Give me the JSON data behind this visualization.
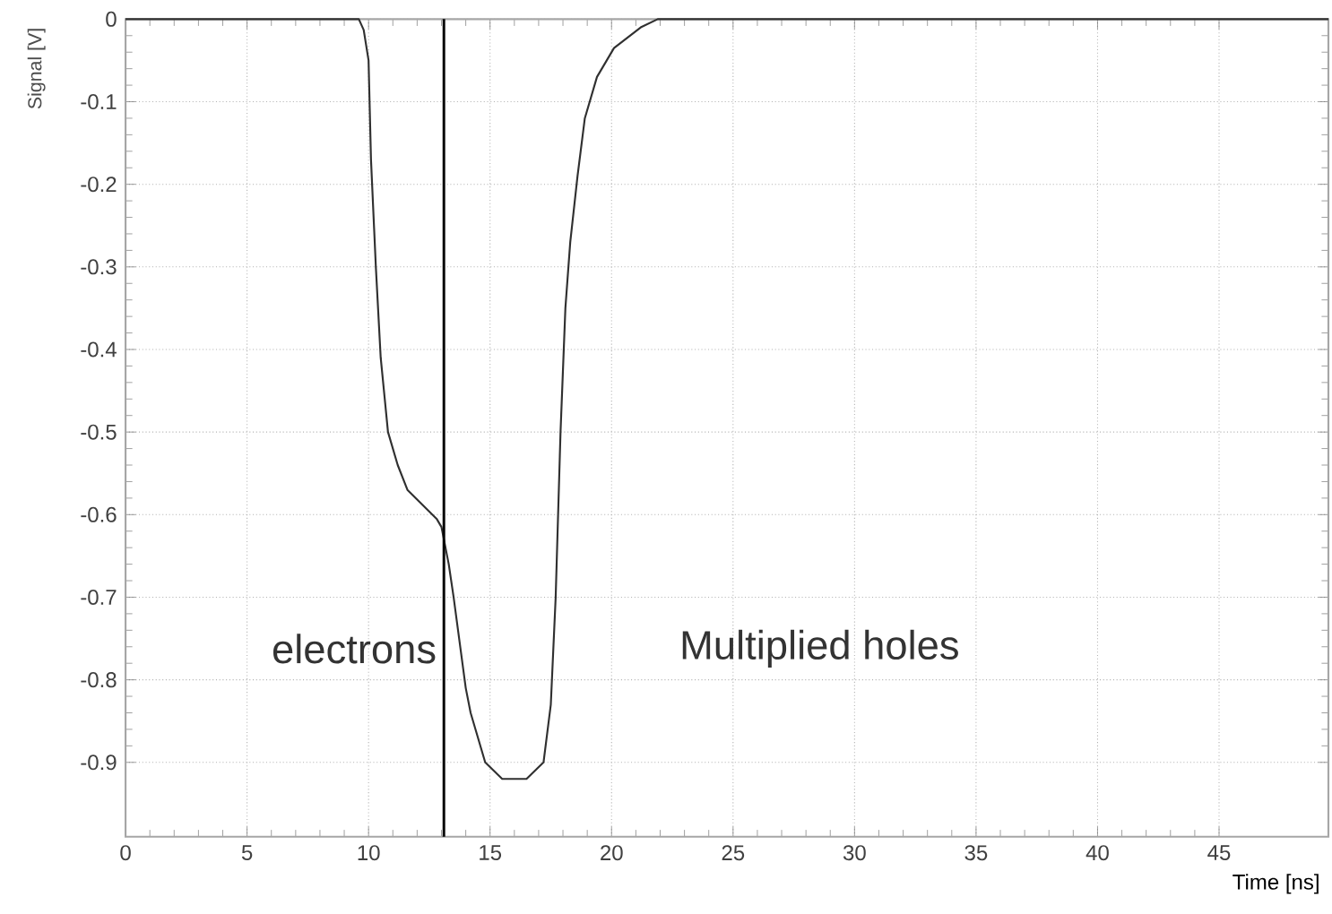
{
  "chart_data": {
    "type": "line",
    "xlabel": "Time [ns]",
    "ylabel": "Signal [V]",
    "x": [
      0,
      9.6,
      9.8,
      10.0,
      10.1,
      10.3,
      10.5,
      10.8,
      11.2,
      11.6,
      12.8,
      13.0,
      13.3,
      13.5,
      14.0,
      14.2,
      14.8,
      15.5,
      16.5,
      17.2,
      17.5,
      17.7,
      17.8,
      17.9,
      18.1,
      18.3,
      18.6,
      18.9,
      19.4,
      20.1,
      21.2,
      21.9,
      49.5
    ],
    "series": [
      {
        "color": "#303030",
        "values": [
          0,
          0,
          -0.013,
          -0.05,
          -0.17,
          -0.3,
          -0.41,
          -0.5,
          -0.54,
          -0.57,
          -0.605,
          -0.615,
          -0.66,
          -0.7,
          -0.81,
          -0.84,
          -0.9,
          -0.92,
          -0.92,
          -0.9,
          -0.83,
          -0.7,
          -0.6,
          -0.5,
          -0.35,
          -0.27,
          -0.19,
          -0.12,
          -0.07,
          -0.035,
          -0.01,
          0,
          0
        ]
      }
    ],
    "xlim": [
      0,
      49.5
    ],
    "ylim": [
      -0.99,
      0
    ],
    "xticks": [
      0,
      5,
      10,
      15,
      20,
      25,
      30,
      35,
      40,
      45
    ],
    "yticks": [
      0,
      -0.1,
      -0.2,
      -0.3,
      -0.4,
      -0.5,
      -0.6,
      -0.7,
      -0.8,
      -0.9
    ],
    "ref_lines": [
      {
        "axis": "x",
        "value": 13.1,
        "color": "#000000"
      }
    ],
    "annotations": [
      "electrons",
      "Multiplied holes"
    ],
    "grid": true,
    "line_style": "solid",
    "marker": "none"
  }
}
